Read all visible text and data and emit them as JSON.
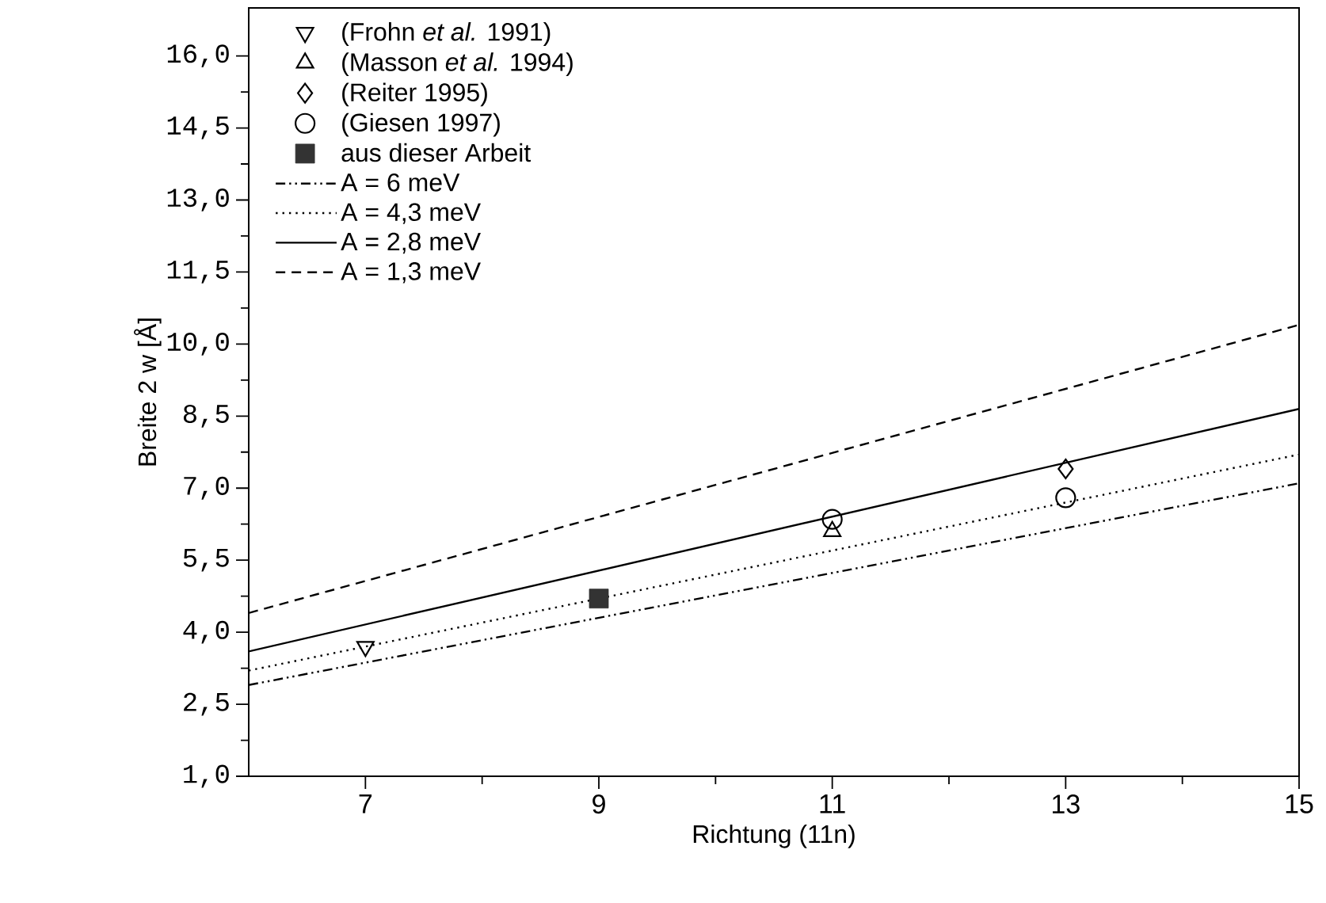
{
  "chart_data": {
    "type": "scatter",
    "xlabel": "Richtung (11n)",
    "ylabel": "Breite 2 w [Å]",
    "xlim": [
      6,
      15
    ],
    "xticks": [
      7,
      9,
      11,
      13,
      15
    ],
    "ylim": [
      1,
      17
    ],
    "yticks": [
      {
        "value": 1,
        "label": "1,0"
      },
      {
        "value": 2.5,
        "label": "2,5"
      },
      {
        "value": 4,
        "label": "4,0"
      },
      {
        "value": 5.5,
        "label": "5,5"
      },
      {
        "value": 7,
        "label": "7,0"
      },
      {
        "value": 8.5,
        "label": "8,5"
      },
      {
        "value": 10,
        "label": "10,0"
      },
      {
        "value": 11.5,
        "label": "11,5"
      },
      {
        "value": 13,
        "label": "13,0"
      },
      {
        "value": 14.5,
        "label": "14,5"
      },
      {
        "value": 16,
        "label": "16,0"
      }
    ],
    "legend": "top left",
    "series": [
      {
        "name": "(Frohn *et al.* 1991)",
        "marker": "triangle_down",
        "color": "#000000",
        "x": [
          7
        ],
        "values": [
          3.7
        ]
      },
      {
        "name": "(Masson *et al.* 1994)",
        "marker": "triangle",
        "color": "#000000",
        "x": [
          11
        ],
        "values": [
          6.1
        ]
      },
      {
        "name": "(Reiter 1995)",
        "marker": "diamond",
        "color": "#000000",
        "x": [
          13
        ],
        "values": [
          7.4
        ]
      },
      {
        "name": "(Giesen 1997)",
        "marker": "circle",
        "color": "#000000",
        "x": [
          11,
          13
        ],
        "values": [
          6.35,
          6.8
        ]
      },
      {
        "name": "aus dieser Arbeit",
        "marker": "square",
        "color": "#333333",
        "x": [
          9
        ],
        "values": [
          4.7
        ]
      },
      {
        "name": "A = 6 meV",
        "type": "line",
        "line_style": "dashdotdotted",
        "color": "#000000",
        "x": [
          6,
          15
        ],
        "values": [
          2.9,
          7.1
        ]
      },
      {
        "name": "A = 4,3 meV",
        "type": "line",
        "line_style": "dotted",
        "color": "#000000",
        "x": [
          6,
          15
        ],
        "values": [
          3.2,
          7.7
        ]
      },
      {
        "name": "A = 2,8 meV",
        "type": "line",
        "line_style": "solid",
        "color": "#000000",
        "x": [
          6,
          15
        ],
        "values": [
          3.6,
          8.65
        ]
      },
      {
        "name": "A = 1,3 meV",
        "type": "line",
        "line_style": "dashed",
        "color": "#000000",
        "x": [
          6,
          15
        ],
        "values": [
          4.4,
          10.4
        ]
      }
    ]
  }
}
